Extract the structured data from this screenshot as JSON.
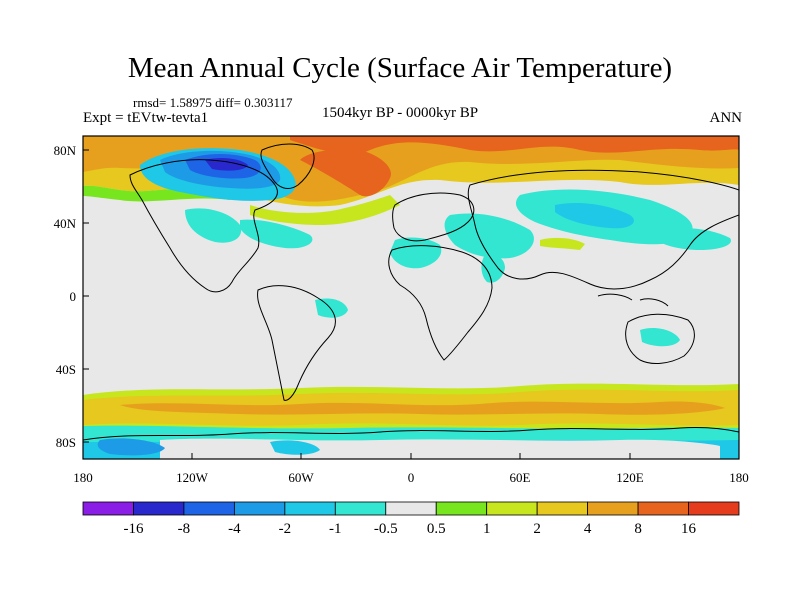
{
  "map": {
    "title": "Mean Annual Cycle (Surface Air Temperature)",
    "stats": "rmsd= 1.58975 diff= 0.303117",
    "experiment": "Expt = tEVtw-tevta1",
    "period": "1504kyr BP - 0000kyr BP",
    "season": "ANN",
    "lat_ticks": [
      "80N",
      "40N",
      "0",
      "40S",
      "80S"
    ],
    "lon_ticks": [
      "180",
      "120W",
      "60W",
      "0",
      "60E",
      "120E",
      "180"
    ]
  },
  "colorbar": {
    "labels": [
      "-16",
      "-8",
      "-4",
      "-2",
      "-1",
      "-0.5",
      "0.5",
      "1",
      "2",
      "4",
      "8",
      "16"
    ],
    "colors": [
      "#8a1ee6",
      "#2828cc",
      "#1e64e6",
      "#1e9be6",
      "#1ec8e6",
      "#32e6d2",
      "#e8e8e8",
      "#78e61e",
      "#c8e61e",
      "#e6c81e",
      "#e6a01e",
      "#e6641e",
      "#e63c1e"
    ]
  }
}
